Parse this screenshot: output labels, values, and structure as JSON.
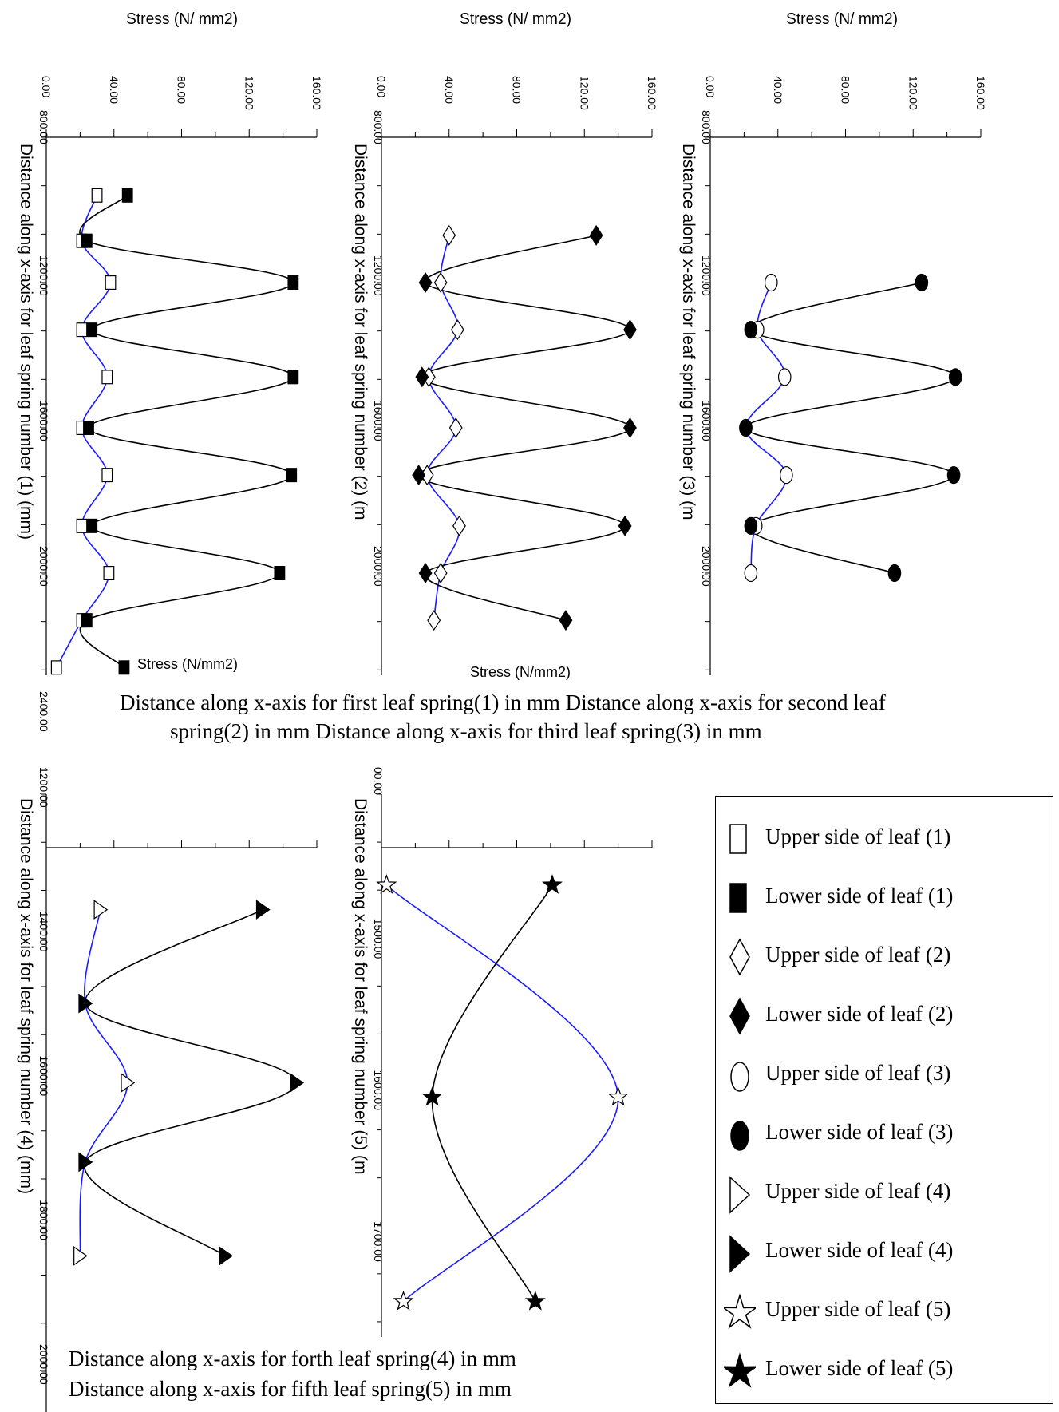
{
  "chart_data": [
    {
      "id": "leaf1",
      "type": "line",
      "title": "Stress (N/ mm2)",
      "xlabel": "Distance along x-axis for leaf spring number  (1)  (mm)",
      "ylabel": "Stress (N/ mm2)",
      "xlim": [
        800,
        2400
      ],
      "ylim": [
        0,
        160
      ],
      "x_ticks": [
        "800.00",
        "1200.00",
        "1600.00",
        "2000.00",
        "2400.00"
      ],
      "y_ticks": [
        "0.00",
        "40.00",
        "80.00",
        "120.00",
        "160.00"
      ],
      "series": [
        {
          "name": "Upper side of leaf (1)",
          "marker": "open-square",
          "color": "#1a1aff",
          "x": [
            960,
            1085,
            1200,
            1330,
            1460,
            1600,
            1730,
            1870,
            2000,
            2130,
            2260
          ],
          "y": [
            30,
            21,
            38,
            21,
            36,
            21,
            36,
            21,
            37,
            21,
            6
          ]
        },
        {
          "name": "Lower side of leaf (1)",
          "marker": "filled-square",
          "color": "#000000",
          "x": [
            960,
            1085,
            1200,
            1330,
            1460,
            1600,
            1730,
            1870,
            2000,
            2130,
            2260
          ],
          "y": [
            48,
            24,
            146,
            27,
            146,
            25,
            145,
            27,
            138,
            24,
            46
          ]
        }
      ],
      "stray_label": "Stress (N/mm2)"
    },
    {
      "id": "leaf2",
      "type": "line",
      "title": "Stress (N/ mm2)",
      "xlabel": "Distance along x-axis for leaf spring number  (2)  (m",
      "ylabel": "Stress (N/ mm2)",
      "xlim": [
        800,
        2400
      ],
      "ylim": [
        0,
        160
      ],
      "x_ticks": [
        "800.00",
        "1200.00",
        "1600.00",
        "2000.00"
      ],
      "y_ticks": [
        "0.00",
        "40.00",
        "80.00",
        "120.00",
        "160.00"
      ],
      "series": [
        {
          "name": "Upper side of leaf (2)",
          "marker": "open-diamond",
          "color": "#1a1aff",
          "x": [
            1070,
            1200,
            1330,
            1460,
            1600,
            1730,
            1870,
            2000,
            2130
          ],
          "y": [
            40,
            35,
            45,
            28,
            44,
            27,
            46,
            35,
            31
          ]
        },
        {
          "name": "Lower side of leaf (2)",
          "marker": "filled-diamond",
          "color": "#000000",
          "x": [
            1070,
            1200,
            1330,
            1460,
            1600,
            1730,
            1870,
            2000,
            2130
          ],
          "y": [
            127,
            26,
            147,
            24,
            147,
            22,
            144,
            26,
            109
          ]
        }
      ],
      "stray_label": "Stress (N/mm2)"
    },
    {
      "id": "leaf3",
      "type": "line",
      "title": "Stress (N/ mm2)",
      "xlabel": "Distance along x-axis for leaf spring number  (3)  (m",
      "ylabel": "Stress (N/ mm2)",
      "xlim": [
        800,
        2400
      ],
      "ylim": [
        0,
        160
      ],
      "x_ticks": [
        "800.00",
        "1200.00",
        "1600.00",
        "2000.00"
      ],
      "y_ticks": [
        "0.00",
        "40.00",
        "80.00",
        "120.00",
        "160.00"
      ],
      "series": [
        {
          "name": "Upper side of leaf (3)",
          "marker": "open-circle",
          "color": "#1a1aff",
          "x": [
            1200,
            1330,
            1460,
            1600,
            1730,
            1870,
            2000
          ],
          "y": [
            36,
            28,
            44,
            21,
            45,
            27,
            24
          ]
        },
        {
          "name": "Lower side of leaf (3)",
          "marker": "filled-circle",
          "color": "#000000",
          "x": [
            1200,
            1330,
            1460,
            1600,
            1730,
            1870,
            2000
          ],
          "y": [
            125,
            24,
            145,
            21,
            144,
            24,
            109
          ]
        }
      ]
    },
    {
      "id": "leaf4",
      "type": "line",
      "title": "",
      "xlabel": "Distance along x-axis for leaf spring number  (4)  (mm)",
      "ylabel": "",
      "xlim": [
        1200,
        2000
      ],
      "ylim": [
        0,
        160
      ],
      "x_ticks": [
        "1200.00",
        "1400.00",
        "1600.00",
        "1800.00",
        "2000.00"
      ],
      "y_ticks": [],
      "series": [
        {
          "name": "Upper side of leaf (4)",
          "marker": "open-triangle",
          "color": "#1a1aff",
          "x": [
            1360,
            1490,
            1600,
            1710,
            1840
          ],
          "y": [
            32,
            23,
            48,
            23,
            20
          ]
        },
        {
          "name": "Lower side of leaf (4)",
          "marker": "filled-triangle",
          "color": "#000000",
          "x": [
            1360,
            1490,
            1600,
            1710,
            1840
          ],
          "y": [
            128,
            23,
            148,
            23,
            106
          ]
        }
      ]
    },
    {
      "id": "leaf5",
      "type": "line",
      "title": "",
      "xlabel": "Distance along x-axis for leaf spring number  (5)  (m",
      "ylabel": "",
      "xlim": [
        1400,
        1780
      ],
      "ylim": [
        0,
        160
      ],
      "x_ticks": [
        "00.00",
        "1500.00",
        "1600.00",
        "1700.00"
      ],
      "y_ticks": [],
      "series": [
        {
          "name": "Upper side of leaf (5)",
          "marker": "open-star",
          "color": "#1a1aff",
          "x": [
            1460,
            1600,
            1735
          ],
          "y": [
            3,
            140,
            13
          ]
        },
        {
          "name": "Lower side of leaf (5)",
          "marker": "filled-star",
          "color": "#000000",
          "x": [
            1460,
            1600,
            1735
          ],
          "y": [
            101,
            30,
            91
          ]
        }
      ]
    }
  ],
  "captions": {
    "top_line1": "Distance along x-axis for first leaf spring(1) in mm        Distance along x-axis for second leaf",
    "top_line2": "spring(2) in mm     Distance along x-axis for third leaf spring(3) in mm",
    "bottom_line1": "Distance along x-axis for forth leaf spring(4) in mm",
    "bottom_line2": "Distance along x-axis for fifth leaf spring(5) in mm"
  },
  "legend": [
    {
      "label": "Upper side of leaf (1)",
      "marker": "open-square"
    },
    {
      "label": "Lower side of leaf  (1)",
      "marker": "filled-square"
    },
    {
      "label": "Upper side of leaf  (2)",
      "marker": "open-diamond"
    },
    {
      "label": " Lower side of leaf  (2)",
      "marker": "filled-diamond"
    },
    {
      "label": "Upper side  of leaf  (3)",
      "marker": "open-circle"
    },
    {
      "label": "Lower side of leaf  (3)",
      "marker": "filled-circle"
    },
    {
      "label": "Upper side  of leaf  (4)",
      "marker": "open-triangle"
    },
    {
      "label": "Lower side of leaf  (4)",
      "marker": "filled-triangle"
    },
    {
      "label": " Upper side  of leaf  (5)",
      "marker": "open-star"
    },
    {
      "label": " Lower side of leaf  (5)",
      "marker": "filled-star"
    }
  ]
}
